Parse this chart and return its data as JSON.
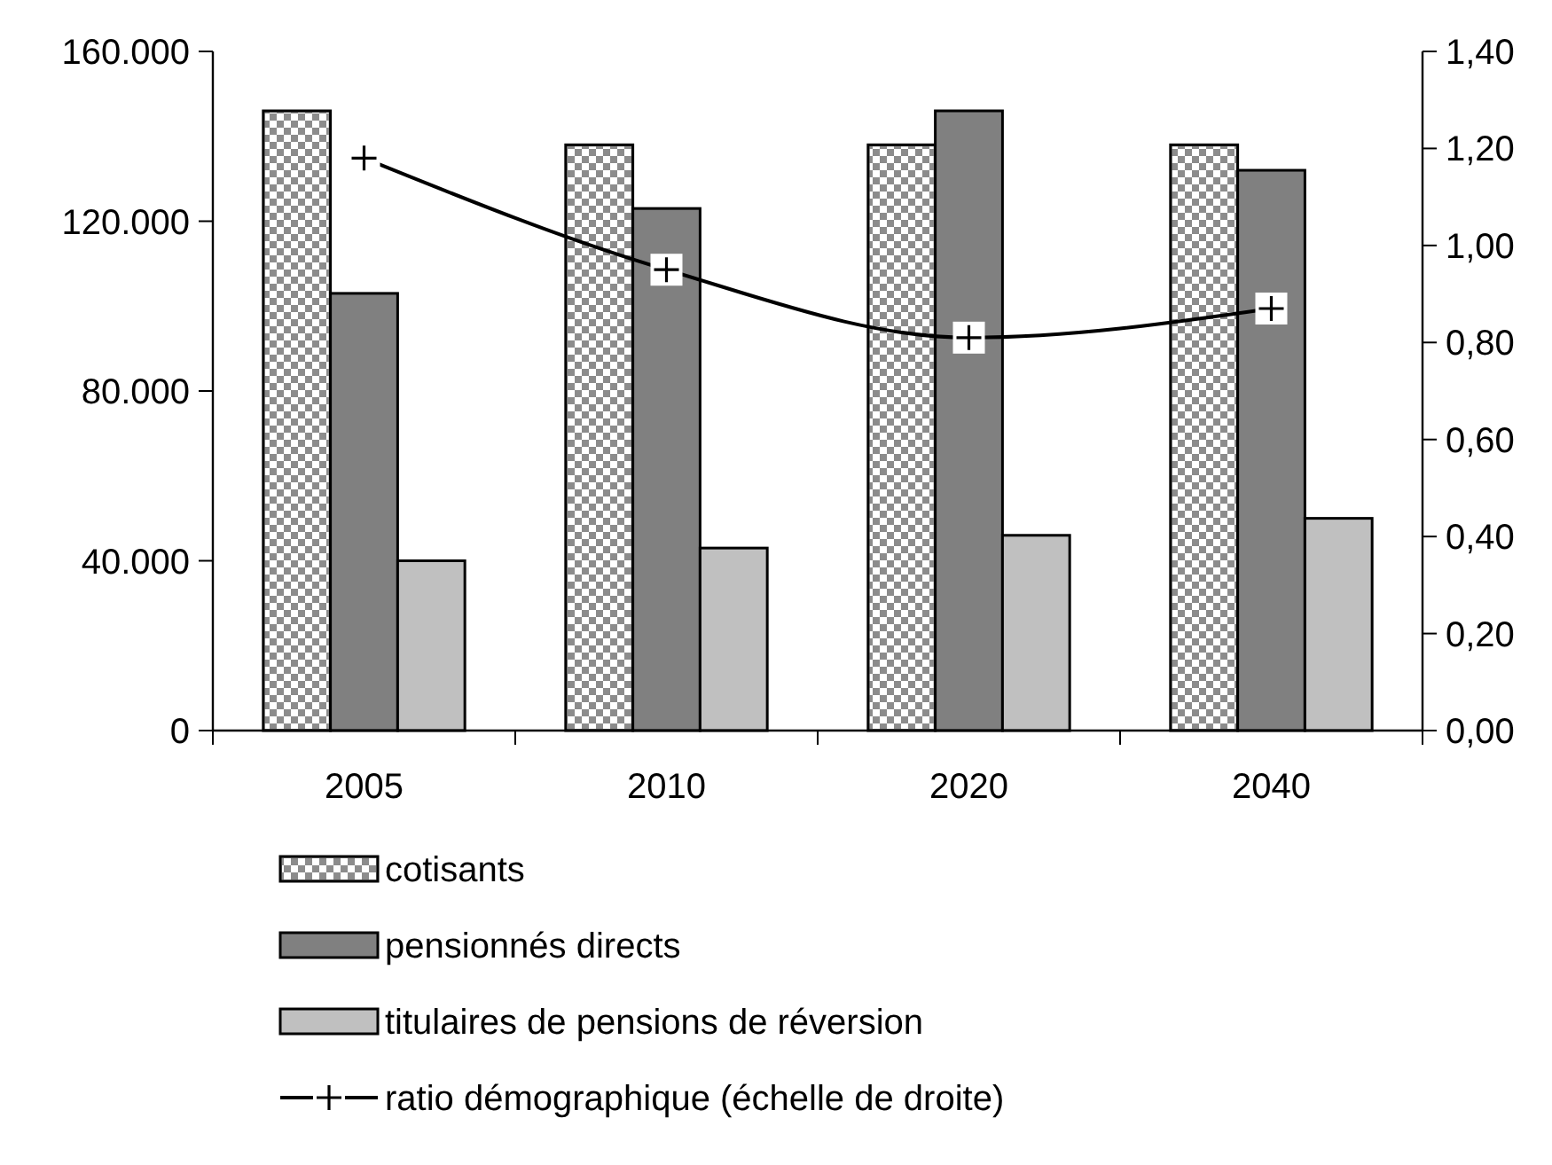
{
  "chart_data": {
    "type": "bar",
    "categories": [
      "2005",
      "2010",
      "2020",
      "2040"
    ],
    "series": [
      {
        "name": "cotisants",
        "color": "#8c8c8c",
        "values": [
          146000,
          138000,
          138000,
          138000
        ]
      },
      {
        "name": "pensionnés directs",
        "color": "#808080",
        "values": [
          103000,
          123000,
          146000,
          132000
        ]
      },
      {
        "name": "titulaires de pensions de réversion",
        "color": "#c0c0c0",
        "values": [
          40000,
          43000,
          46000,
          50000
        ]
      },
      {
        "name": "ratio démographique (échelle de droite)",
        "type": "line",
        "axis": "y2",
        "color": "#000000",
        "values": [
          1.18,
          0.95,
          0.81,
          0.87
        ],
        "marker": "cross",
        "line_style": "solid"
      }
    ],
    "ylim": [
      0,
      160000
    ],
    "yticks": [
      {
        "value": 0,
        "label": "0"
      },
      {
        "value": 40000,
        "label": "40.000"
      },
      {
        "value": 80000,
        "label": "80.000"
      },
      {
        "value": 120000,
        "label": "120.000"
      },
      {
        "value": 160000,
        "label": "160.000"
      }
    ],
    "y2lim": [
      0,
      1.4
    ],
    "y2ticks": [
      {
        "value": 0,
        "label": "0,00"
      },
      {
        "value": 0.2,
        "label": "0,20"
      },
      {
        "value": 0.4,
        "label": "0,40"
      },
      {
        "value": 0.6,
        "label": "0,60"
      },
      {
        "value": 0.8,
        "label": "0,80"
      },
      {
        "value": 1.0,
        "label": "1,00"
      },
      {
        "value": 1.2,
        "label": "1,20"
      },
      {
        "value": 1.4,
        "label": "1,40"
      }
    ],
    "grid": false,
    "legend": "bottom"
  }
}
